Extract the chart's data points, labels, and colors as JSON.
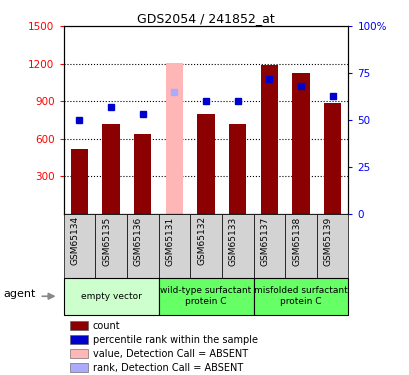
{
  "title": "GDS2054 / 241852_at",
  "categories": [
    "GSM65134",
    "GSM65135",
    "GSM65136",
    "GSM65131",
    "GSM65132",
    "GSM65133",
    "GSM65137",
    "GSM65138",
    "GSM65139"
  ],
  "bar_values": [
    520,
    720,
    640,
    1210,
    800,
    720,
    1190,
    1130,
    890
  ],
  "absent_mask": [
    false,
    false,
    false,
    true,
    false,
    false,
    false,
    false,
    false
  ],
  "rank_values": [
    50,
    57,
    53,
    65,
    60,
    60,
    72,
    68,
    63
  ],
  "rank_absent_mask": [
    false,
    false,
    false,
    true,
    false,
    false,
    false,
    false,
    false
  ],
  "ylim_left": [
    0,
    1500
  ],
  "ylim_right": [
    0,
    100
  ],
  "yticks_left": [
    300,
    600,
    900,
    1200,
    1500
  ],
  "yticks_right": [
    0,
    25,
    50,
    75,
    100
  ],
  "groups": [
    {
      "label": "empty vector",
      "start": 0,
      "end": 3,
      "color": "#ccffcc"
    },
    {
      "label": "wild-type surfactant\nprotein C",
      "start": 3,
      "end": 6,
      "color": "#66ff66"
    },
    {
      "label": "misfolded surfactant\nprotein C",
      "start": 6,
      "end": 9,
      "color": "#66ff66"
    }
  ],
  "bar_width": 0.55,
  "bar_color": "#8b0000",
  "absent_bar_color": "#ffb6b6",
  "rank_color": "#0000cc",
  "rank_absent_color": "#aaaaff",
  "sample_box_color": "#d3d3d3",
  "agent_label": "agent",
  "legend_items": [
    {
      "label": "count",
      "color": "#8b0000"
    },
    {
      "label": "percentile rank within the sample",
      "color": "#0000cc"
    },
    {
      "label": "value, Detection Call = ABSENT",
      "color": "#ffb6b6"
    },
    {
      "label": "rank, Detection Call = ABSENT",
      "color": "#aaaaff"
    }
  ]
}
